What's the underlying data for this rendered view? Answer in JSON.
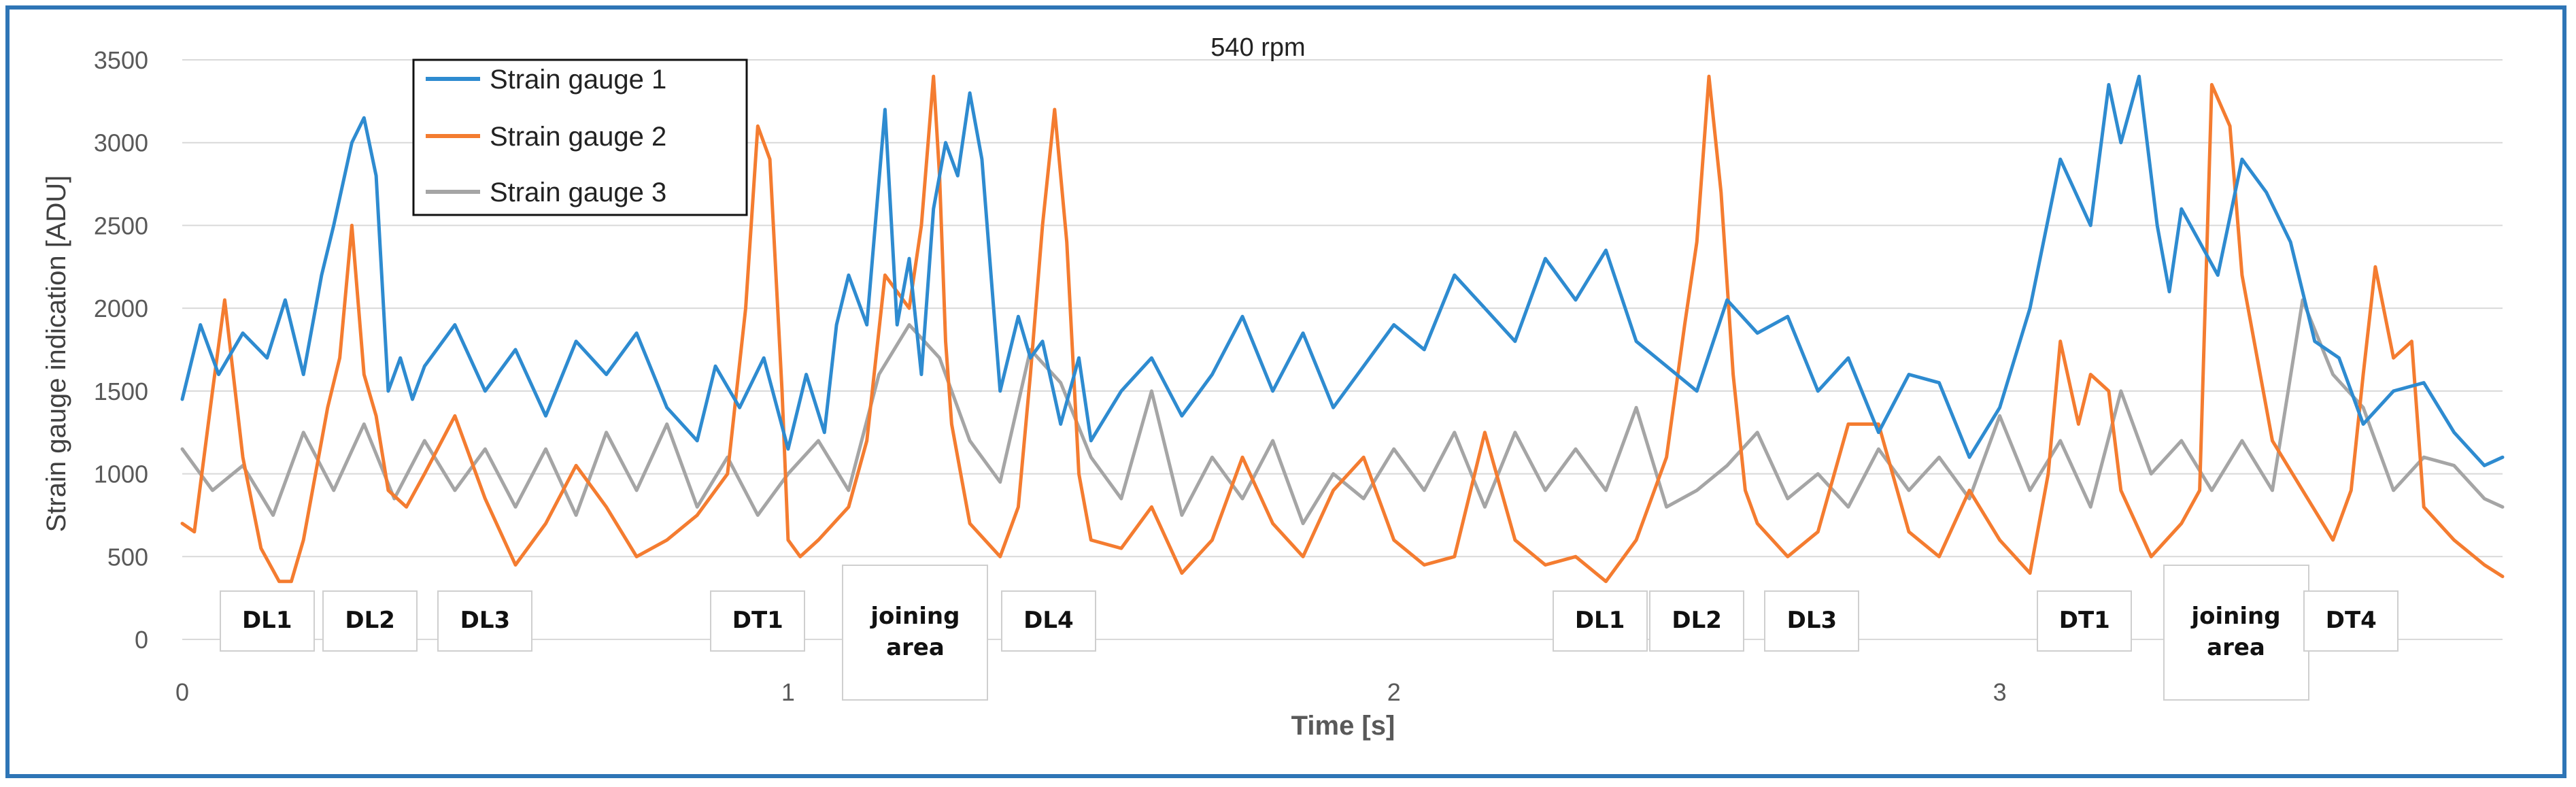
{
  "chart_data": {
    "type": "line",
    "title": "540 rpm",
    "xlabel": "Time [s]",
    "ylabel": "Strain gauge indication [ADU]",
    "xlim": [
      0,
      3.83
    ],
    "ylim": [
      0,
      3500
    ],
    "xticks": [
      0,
      1,
      2,
      3
    ],
    "yticks": [
      0,
      500,
      1000,
      1500,
      2000,
      2500,
      3000,
      3500
    ],
    "grid": true,
    "legend_position": "top-left",
    "colors": {
      "sg1": "#2e8bd0",
      "sg2": "#f47c30",
      "sg3": "#a5a5a5"
    },
    "series": [
      {
        "name": "Strain gauge 1",
        "key": "sg1",
        "x": [
          0,
          0.03,
          0.06,
          0.1,
          0.14,
          0.17,
          0.2,
          0.23,
          0.25,
          0.28,
          0.3,
          0.32,
          0.34,
          0.36,
          0.38,
          0.4,
          0.45,
          0.5,
          0.55,
          0.6,
          0.65,
          0.7,
          0.75,
          0.8,
          0.85,
          0.88,
          0.92,
          0.96,
          1.0,
          1.03,
          1.06,
          1.08,
          1.1,
          1.13,
          1.16,
          1.18,
          1.2,
          1.22,
          1.24,
          1.26,
          1.28,
          1.3,
          1.32,
          1.35,
          1.38,
          1.4,
          1.42,
          1.45,
          1.48,
          1.5,
          1.55,
          1.6,
          1.65,
          1.7,
          1.75,
          1.8,
          1.85,
          1.9,
          1.95,
          2.0,
          2.05,
          2.1,
          2.15,
          2.2,
          2.25,
          2.3,
          2.35,
          2.4,
          2.45,
          2.5,
          2.55,
          2.6,
          2.65,
          2.7,
          2.75,
          2.8,
          2.85,
          2.9,
          2.95,
          3.0,
          3.05,
          3.1,
          3.15,
          3.18,
          3.2,
          3.23,
          3.26,
          3.28,
          3.3,
          3.33,
          3.36,
          3.4,
          3.44,
          3.48,
          3.52,
          3.56,
          3.6,
          3.65,
          3.7,
          3.75,
          3.8,
          3.83
        ],
        "values": [
          1450,
          1900,
          1600,
          1850,
          1700,
          2050,
          1600,
          2200,
          2500,
          3000,
          3150,
          2800,
          1500,
          1700,
          1450,
          1650,
          1900,
          1500,
          1750,
          1350,
          1800,
          1600,
          1850,
          1400,
          1200,
          1650,
          1400,
          1700,
          1150,
          1600,
          1250,
          1900,
          2200,
          1900,
          3200,
          1900,
          2300,
          1600,
          2600,
          3000,
          2800,
          3300,
          2900,
          1500,
          1950,
          1700,
          1800,
          1300,
          1700,
          1200,
          1500,
          1700,
          1350,
          1600,
          1950,
          1500,
          1850,
          1400,
          1650,
          1900,
          1750,
          2200,
          2000,
          1800,
          2300,
          2050,
          2350,
          1800,
          1650,
          1500,
          2050,
          1850,
          1950,
          1500,
          1700,
          1250,
          1600,
          1550,
          1100,
          1400,
          2000,
          2900,
          2500,
          3350,
          3000,
          3400,
          2500,
          2100,
          2600,
          2400,
          2200,
          2900,
          2700,
          2400,
          1800,
          1700,
          1300,
          1500,
          1550,
          1250,
          1050,
          1100
        ]
      },
      {
        "name": "Strain gauge 2",
        "key": "sg2",
        "x": [
          0,
          0.02,
          0.05,
          0.07,
          0.1,
          0.13,
          0.16,
          0.18,
          0.2,
          0.24,
          0.26,
          0.28,
          0.3,
          0.32,
          0.34,
          0.37,
          0.4,
          0.45,
          0.5,
          0.55,
          0.6,
          0.65,
          0.7,
          0.75,
          0.8,
          0.85,
          0.9,
          0.93,
          0.95,
          0.97,
          0.99,
          1.0,
          1.02,
          1.05,
          1.1,
          1.13,
          1.16,
          1.18,
          1.2,
          1.22,
          1.24,
          1.25,
          1.26,
          1.27,
          1.3,
          1.35,
          1.38,
          1.4,
          1.42,
          1.44,
          1.46,
          1.48,
          1.5,
          1.55,
          1.6,
          1.65,
          1.7,
          1.75,
          1.8,
          1.85,
          1.9,
          1.95,
          2.0,
          2.05,
          2.1,
          2.15,
          2.2,
          2.25,
          2.3,
          2.35,
          2.4,
          2.45,
          2.48,
          2.5,
          2.52,
          2.54,
          2.56,
          2.58,
          2.6,
          2.65,
          2.7,
          2.75,
          2.8,
          2.85,
          2.9,
          2.95,
          3.0,
          3.05,
          3.08,
          3.1,
          3.13,
          3.15,
          3.18,
          3.2,
          3.25,
          3.3,
          3.33,
          3.35,
          3.38,
          3.4,
          3.45,
          3.5,
          3.55,
          3.58,
          3.6,
          3.62,
          3.65,
          3.68,
          3.7,
          3.75,
          3.8,
          3.83
        ],
        "values": [
          700,
          650,
          1500,
          2050,
          1100,
          550,
          350,
          350,
          600,
          1400,
          1700,
          2500,
          1600,
          1350,
          900,
          800,
          1000,
          1350,
          850,
          450,
          700,
          1050,
          800,
          500,
          600,
          750,
          1000,
          2000,
          3100,
          2900,
          1500,
          600,
          500,
          600,
          800,
          1200,
          2200,
          2100,
          2000,
          2500,
          3400,
          2800,
          1800,
          1300,
          700,
          500,
          800,
          1600,
          2500,
          3200,
          2400,
          1000,
          600,
          550,
          800,
          400,
          600,
          1100,
          700,
          500,
          900,
          1100,
          600,
          450,
          500,
          1250,
          600,
          450,
          500,
          350,
          600,
          1100,
          1900,
          2400,
          3400,
          2700,
          1600,
          900,
          700,
          500,
          650,
          1300,
          1300,
          650,
          500,
          900,
          600,
          400,
          1000,
          1800,
          1300,
          1600,
          1500,
          900,
          500,
          700,
          900,
          3350,
          3100,
          2200,
          1200,
          900,
          600,
          900,
          1600,
          2250,
          1700,
          1800,
          800,
          600,
          450,
          380
        ]
      },
      {
        "name": "Strain gauge 3",
        "key": "sg3",
        "x": [
          0,
          0.05,
          0.1,
          0.15,
          0.2,
          0.25,
          0.3,
          0.35,
          0.4,
          0.45,
          0.5,
          0.55,
          0.6,
          0.65,
          0.7,
          0.75,
          0.8,
          0.85,
          0.9,
          0.95,
          1.0,
          1.05,
          1.1,
          1.15,
          1.2,
          1.25,
          1.3,
          1.35,
          1.4,
          1.45,
          1.5,
          1.55,
          1.6,
          1.65,
          1.7,
          1.75,
          1.8,
          1.85,
          1.9,
          1.95,
          2.0,
          2.05,
          2.1,
          2.15,
          2.2,
          2.25,
          2.3,
          2.35,
          2.4,
          2.45,
          2.5,
          2.55,
          2.6,
          2.65,
          2.7,
          2.75,
          2.8,
          2.85,
          2.9,
          2.95,
          3.0,
          3.05,
          3.1,
          3.15,
          3.2,
          3.25,
          3.3,
          3.35,
          3.4,
          3.45,
          3.5,
          3.55,
          3.6,
          3.65,
          3.7,
          3.75,
          3.8,
          3.83
        ],
        "values": [
          1150,
          900,
          1050,
          750,
          1250,
          900,
          1300,
          850,
          1200,
          900,
          1150,
          800,
          1150,
          750,
          1250,
          900,
          1300,
          800,
          1100,
          750,
          1000,
          1200,
          900,
          1600,
          1900,
          1700,
          1200,
          950,
          1750,
          1550,
          1100,
          850,
          1500,
          750,
          1100,
          850,
          1200,
          700,
          1000,
          850,
          1150,
          900,
          1250,
          800,
          1250,
          900,
          1150,
          900,
          1400,
          800,
          900,
          1050,
          1250,
          850,
          1000,
          800,
          1150,
          900,
          1100,
          850,
          1350,
          900,
          1200,
          800,
          1500,
          1000,
          1200,
          900,
          1200,
          900,
          2050,
          1600,
          1400,
          900,
          1100,
          1050,
          850,
          800
        ]
      }
    ],
    "annotations": [
      {
        "label": "DL1",
        "x": 0.14
      },
      {
        "label": "DL2",
        "x": 0.31
      },
      {
        "label": "DL3",
        "x": 0.5
      },
      {
        "label": "DT1",
        "x": 0.95
      },
      {
        "label": "joining area",
        "x": 1.21
      },
      {
        "label": "DL4",
        "x": 1.43
      },
      {
        "label": "DL1",
        "x": 2.34
      },
      {
        "label": "DL2",
        "x": 2.5
      },
      {
        "label": "DL3",
        "x": 2.69
      },
      {
        "label": "DT1",
        "x": 3.14
      },
      {
        "label": "joining area",
        "x": 3.39
      },
      {
        "label": "DT4",
        "x": 3.58
      }
    ]
  }
}
